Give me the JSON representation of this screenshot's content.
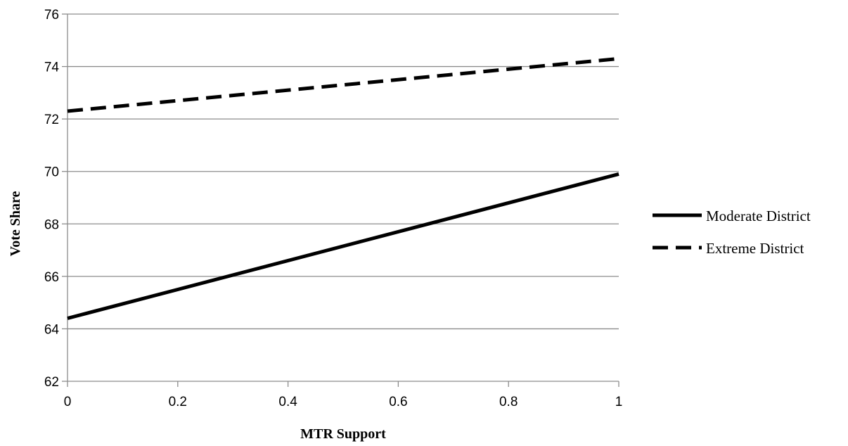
{
  "chart_data": {
    "type": "line",
    "title": "",
    "xlabel": "MTR Support",
    "ylabel": "Vote  Share",
    "xlim": [
      0,
      1
    ],
    "ylim": [
      62,
      76
    ],
    "x_ticks": [
      0,
      0.2,
      0.4,
      0.6,
      0.8,
      1
    ],
    "x_tick_labels": [
      "0",
      "0.2",
      "0.4",
      "0.6",
      "0.8",
      "1"
    ],
    "y_ticks": [
      62,
      64,
      66,
      68,
      70,
      72,
      74,
      76
    ],
    "y_tick_labels": [
      "62",
      "64",
      "66",
      "68",
      "70",
      "72",
      "74",
      "76"
    ],
    "grid": "horizontal",
    "legend_position": "right",
    "series": [
      {
        "name": "Moderate District",
        "style": "solid",
        "color": "#000000",
        "x": [
          0,
          1
        ],
        "y": [
          64.4,
          69.9
        ]
      },
      {
        "name": "Extreme District",
        "style": "dashed",
        "color": "#000000",
        "x": [
          0,
          1
        ],
        "y": [
          72.3,
          74.3
        ]
      }
    ]
  }
}
